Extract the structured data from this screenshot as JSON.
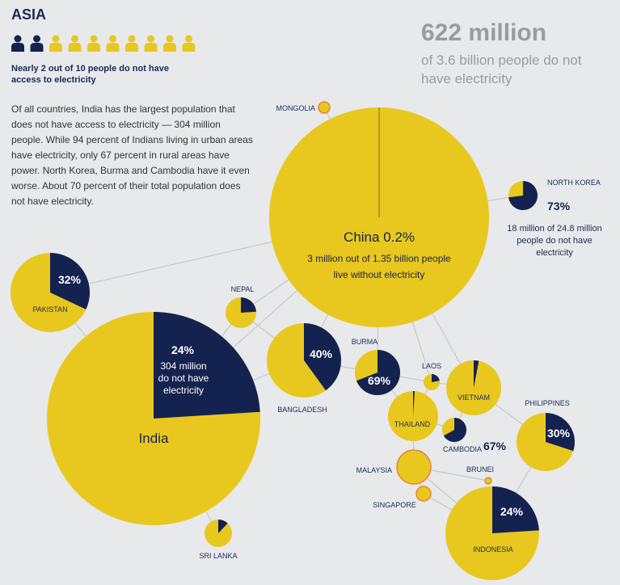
{
  "header": {
    "title": "ASIA",
    "stat_caption": "Nearly 2 out of 10 people do not have access to electricity",
    "people_dark": 2,
    "people_total": 10,
    "body": "Of all countries, India has the largest population that does not have access to electricity — 304 million people. While 94 percent of Indians living in urban areas have electricity, only 67 percent in rural areas have power. North Korea, Burma and Cambodia have it even worse. About 70 percent of their total population does not have electricity.",
    "headline_number": "622 million",
    "headline_sub": "of 3.6 billion people do not have electricity"
  },
  "colors": {
    "no_electricity": "#14224f",
    "has_electricity": "#e8c81e",
    "highlight_outline": "#e8833a",
    "background": "#e8e9eb"
  },
  "chart_data": {
    "type": "pie",
    "series_meaning": "share of population without electricity",
    "countries": [
      {
        "name": "China",
        "pct_without": 0.2,
        "name_label": "China 0.2%",
        "notes": [
          "3 million out of 1.35 billion people",
          "live without electricity"
        ]
      },
      {
        "name": "India",
        "pct_without": 24,
        "name_label": "India",
        "pct_label": "24%",
        "notes": [
          "304 million",
          "do not have",
          "electricity"
        ]
      },
      {
        "name": "Pakistan",
        "pct_without": 32,
        "name_label": "PAKISTAN",
        "pct_label": "32%"
      },
      {
        "name": "Nepal",
        "pct_without": 24,
        "name_label": "NEPAL"
      },
      {
        "name": "Bangladesh",
        "pct_without": 40,
        "name_label": "BANGLADESH",
        "pct_label": "40%"
      },
      {
        "name": "Burma",
        "pct_without": 69,
        "name_label": "BURMA",
        "pct_label": "69%"
      },
      {
        "name": "Laos",
        "pct_without": 22,
        "name_label": "LAOS"
      },
      {
        "name": "Vietnam",
        "pct_without": 3,
        "name_label": "VIETNAM"
      },
      {
        "name": "Thailand",
        "pct_without": 1,
        "name_label": "THAILAND"
      },
      {
        "name": "Cambodia",
        "pct_without": 67,
        "name_label": "CAMBODIA",
        "pct_label": "67%"
      },
      {
        "name": "Philippines",
        "pct_without": 30,
        "name_label": "PHILIPPINES",
        "pct_label": "30%"
      },
      {
        "name": "Indonesia",
        "pct_without": 24,
        "name_label": "INDONESIA",
        "pct_label": "24%"
      },
      {
        "name": "Malaysia",
        "pct_without": 0,
        "name_label": "MALAYSIA"
      },
      {
        "name": "Singapore",
        "pct_without": 0,
        "name_label": "SINGAPORE"
      },
      {
        "name": "Brunei",
        "pct_without": 0,
        "name_label": "BRUNEI"
      },
      {
        "name": "Mongolia",
        "pct_without": 0,
        "name_label": "MONGOLIA"
      },
      {
        "name": "North Korea",
        "pct_without": 73,
        "name_label": "NORTH KOREA",
        "pct_label": "73%",
        "notes": [
          "18 million of 24.8 million",
          "people do not have",
          "electricity"
        ]
      },
      {
        "name": "Sri Lanka",
        "pct_without": 12,
        "name_label": "SRI LANKA"
      }
    ]
  }
}
